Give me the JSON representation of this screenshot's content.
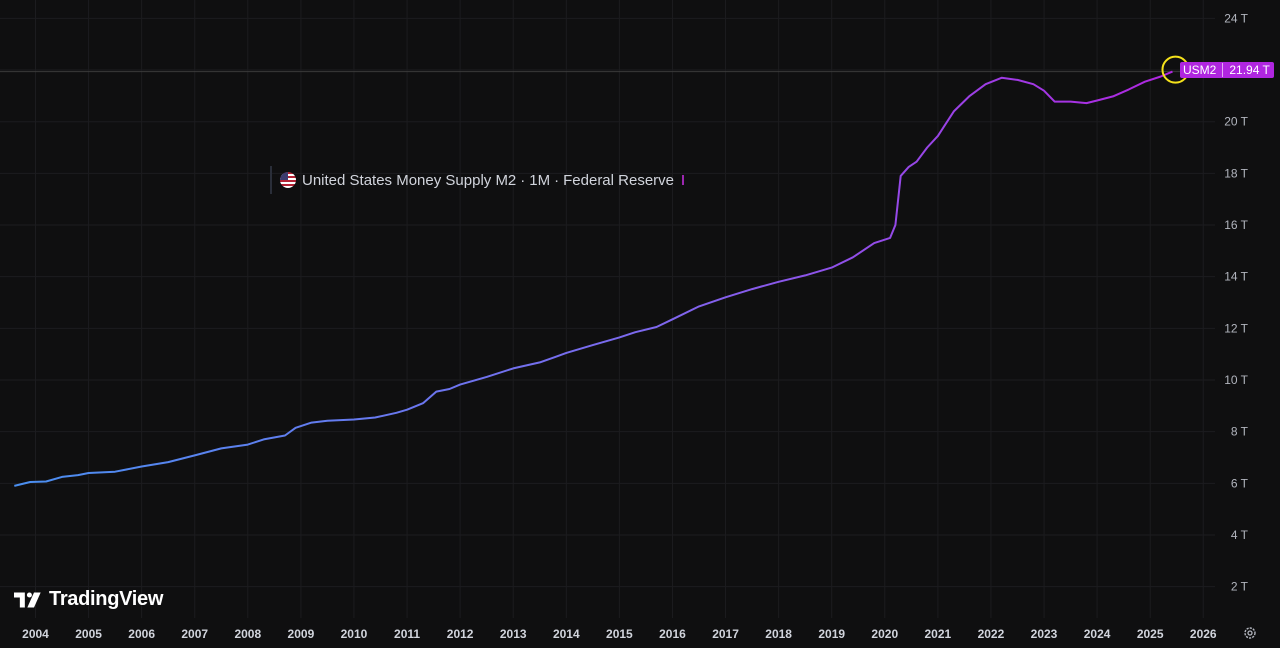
{
  "legend": {
    "title": "United States Money Supply M2",
    "interval": "1M",
    "source": "Federal Reserve",
    "separator": "·"
  },
  "price_badge": {
    "symbol": "USM2",
    "value": "21.94 T"
  },
  "branding": {
    "name": "TradingView"
  },
  "icons": {
    "flag": "us-flag-icon",
    "settings": "gear-icon",
    "logo": "tradingview-logo-icon"
  },
  "colors": {
    "background": "#0f0f10",
    "line_start": "#4a8ff0",
    "line_end": "#b026e0",
    "highlight_circle": "#f5e21b"
  },
  "chart_data": {
    "type": "line",
    "title": "United States Money Supply M2 · 1M · Federal Reserve",
    "xlabel": "",
    "ylabel": "",
    "y_unit": "T",
    "ylim": [
      1.0,
      24.2
    ],
    "xlim": [
      2003.6,
      2026.1
    ],
    "grid": true,
    "x_ticks": [
      "2004",
      "2005",
      "2006",
      "2007",
      "2008",
      "2009",
      "2010",
      "2011",
      "2012",
      "2013",
      "2014",
      "2015",
      "2016",
      "2017",
      "2018",
      "2019",
      "2020",
      "2021",
      "2022",
      "2023",
      "2024",
      "2025",
      "2026"
    ],
    "y_ticks": [
      "2 T",
      "4 T",
      "6 T",
      "8 T",
      "10 T",
      "12 T",
      "14 T",
      "16 T",
      "18 T",
      "20 T",
      "24 T"
    ],
    "series": [
      {
        "name": "USM2",
        "last_value": 21.94,
        "highlighted_point": [
          2025.42,
          21.94
        ],
        "points": [
          [
            2003.6,
            5.9
          ],
          [
            2003.9,
            6.05
          ],
          [
            2004.2,
            6.07
          ],
          [
            2004.5,
            6.25
          ],
          [
            2004.8,
            6.32
          ],
          [
            2005.0,
            6.4
          ],
          [
            2005.5,
            6.45
          ],
          [
            2006.0,
            6.65
          ],
          [
            2006.5,
            6.82
          ],
          [
            2007.0,
            7.08
          ],
          [
            2007.5,
            7.35
          ],
          [
            2008.0,
            7.5
          ],
          [
            2008.3,
            7.7
          ],
          [
            2008.7,
            7.85
          ],
          [
            2008.9,
            8.15
          ],
          [
            2009.2,
            8.35
          ],
          [
            2009.5,
            8.42
          ],
          [
            2009.8,
            8.45
          ],
          [
            2010.0,
            8.47
          ],
          [
            2010.4,
            8.55
          ],
          [
            2010.8,
            8.73
          ],
          [
            2011.0,
            8.85
          ],
          [
            2011.3,
            9.1
          ],
          [
            2011.55,
            9.55
          ],
          [
            2011.8,
            9.65
          ],
          [
            2012.0,
            9.82
          ],
          [
            2012.5,
            10.12
          ],
          [
            2013.0,
            10.45
          ],
          [
            2013.5,
            10.68
          ],
          [
            2013.8,
            10.9
          ],
          [
            2014.0,
            11.05
          ],
          [
            2014.5,
            11.35
          ],
          [
            2015.0,
            11.65
          ],
          [
            2015.3,
            11.85
          ],
          [
            2015.7,
            12.05
          ],
          [
            2016.0,
            12.35
          ],
          [
            2016.5,
            12.85
          ],
          [
            2017.0,
            13.2
          ],
          [
            2017.5,
            13.52
          ],
          [
            2018.0,
            13.8
          ],
          [
            2018.5,
            14.05
          ],
          [
            2019.0,
            14.35
          ],
          [
            2019.4,
            14.75
          ],
          [
            2019.8,
            15.3
          ],
          [
            2020.1,
            15.5
          ],
          [
            2020.2,
            16.0
          ],
          [
            2020.3,
            17.9
          ],
          [
            2020.45,
            18.25
          ],
          [
            2020.6,
            18.45
          ],
          [
            2020.8,
            19.0
          ],
          [
            2021.0,
            19.45
          ],
          [
            2021.3,
            20.4
          ],
          [
            2021.6,
            21.0
          ],
          [
            2021.9,
            21.45
          ],
          [
            2022.2,
            21.7
          ],
          [
            2022.5,
            21.62
          ],
          [
            2022.8,
            21.45
          ],
          [
            2023.0,
            21.2
          ],
          [
            2023.2,
            20.78
          ],
          [
            2023.5,
            20.78
          ],
          [
            2023.8,
            20.72
          ],
          [
            2024.0,
            20.82
          ],
          [
            2024.3,
            20.98
          ],
          [
            2024.6,
            21.25
          ],
          [
            2024.9,
            21.55
          ],
          [
            2025.2,
            21.75
          ],
          [
            2025.42,
            21.94
          ]
        ]
      }
    ]
  }
}
